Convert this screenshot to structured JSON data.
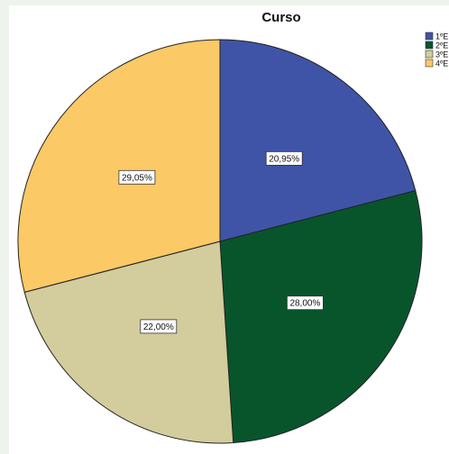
{
  "chart_data": {
    "type": "pie",
    "title": "Curso",
    "slices": [
      {
        "name": "1ºE",
        "value": 20.95,
        "label": "20,95%",
        "color": "#3f54a6"
      },
      {
        "name": "2ºE",
        "value": 28.0,
        "label": "28,00%",
        "color": "#08552c"
      },
      {
        "name": "3ºE",
        "value": 22.0,
        "label": "22,00%",
        "color": "#d3cc9c"
      },
      {
        "name": "4ºE",
        "value": 29.05,
        "label": "29,05%",
        "color": "#fbc965"
      }
    ],
    "start_angle_deg": 0,
    "direction": "clockwise",
    "legend_placement": "top-right"
  }
}
